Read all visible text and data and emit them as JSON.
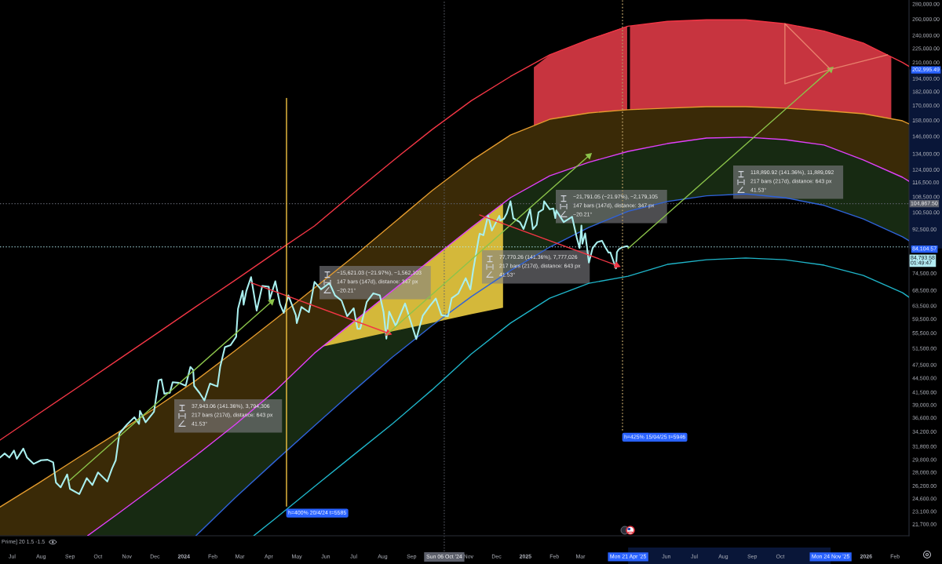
{
  "chart_data": {
    "type": "line",
    "log": true,
    "xlim": [
      "2023-06-18",
      "2026-02-16"
    ],
    "ylim": [
      20490,
      285450
    ],
    "xticks": [
      {
        "value": "2023-07-01",
        "label": "Jul"
      },
      {
        "value": "2023-08-01",
        "label": "Aug"
      },
      {
        "value": "2023-09-01",
        "label": "Sep"
      },
      {
        "value": "2023-10-01",
        "label": "Oct"
      },
      {
        "value": "2023-11-01",
        "label": "Nov"
      },
      {
        "value": "2023-12-01",
        "label": "Dec"
      },
      {
        "value": "2024-01-01",
        "label": "2024"
      },
      {
        "value": "2024-02-01",
        "label": "Feb"
      },
      {
        "value": "2024-03-01",
        "label": "Mar"
      },
      {
        "value": "2024-04-01",
        "label": "Apr"
      },
      {
        "value": "2024-05-01",
        "label": "May"
      },
      {
        "value": "2024-06-01",
        "label": "Jun"
      },
      {
        "value": "2024-07-01",
        "label": "Jul"
      },
      {
        "value": "2024-08-01",
        "label": "Aug"
      },
      {
        "value": "2024-09-01",
        "label": "Sep"
      },
      {
        "value": "2024-11-01",
        "label": "Nov"
      },
      {
        "value": "2024-12-01",
        "label": "Dec"
      },
      {
        "value": "2025-01-01",
        "label": "2025"
      },
      {
        "value": "2025-02-01",
        "label": "Feb"
      },
      {
        "value": "2025-03-01",
        "label": "Mar"
      },
      {
        "value": "2025-04-21",
        "label": "Mon 21 Apr '25"
      },
      {
        "value": "2025-06-01",
        "label": "Jun"
      },
      {
        "value": "2025-07-01",
        "label": "Jul"
      },
      {
        "value": "2025-08-01",
        "label": "Aug"
      },
      {
        "value": "2025-09-01",
        "label": "Sep"
      },
      {
        "value": "2025-10-01",
        "label": "Oct"
      },
      {
        "value": "2025-11-24",
        "label": "Mon 24 Nov '25"
      },
      {
        "value": "2026-01-01",
        "label": "2026"
      },
      {
        "value": "2026-02-01",
        "label": "Feb"
      }
    ],
    "yticks": [
      {
        "value": 280000,
        "label": "280,000.00"
      },
      {
        "value": 260000,
        "label": "260,000.00"
      },
      {
        "value": 240000,
        "label": "240,000.00"
      },
      {
        "value": 225000,
        "label": "225,000.00"
      },
      {
        "value": 210000,
        "label": "210,000.00"
      },
      {
        "value": 202995.49,
        "label": "202,995.49"
      },
      {
        "value": 194000,
        "label": "194,000.00"
      },
      {
        "value": 182000,
        "label": "182,000.00"
      },
      {
        "value": 170000,
        "label": "170,000.00"
      },
      {
        "value": 158000,
        "label": "158,000.00"
      },
      {
        "value": 146000,
        "label": "146,000.00"
      },
      {
        "value": 134000,
        "label": "134,000.00"
      },
      {
        "value": 124000,
        "label": "124,000.00"
      },
      {
        "value": 116500,
        "label": "116,500.00"
      },
      {
        "value": 108500,
        "label": "108,500.00"
      },
      {
        "value": 100500,
        "label": "100,500.00"
      },
      {
        "value": 92500,
        "label": "92,500.00"
      },
      {
        "value": 84104.57,
        "label": "84,104.57"
      },
      {
        "value": 74500,
        "label": "74,500.00"
      },
      {
        "value": 68500,
        "label": "68,500.00"
      },
      {
        "value": 63500,
        "label": "63,500.00"
      },
      {
        "value": 59500,
        "label": "59,500.00"
      },
      {
        "value": 55500,
        "label": "55,500.00"
      },
      {
        "value": 51500,
        "label": "51,500.00"
      },
      {
        "value": 47500,
        "label": "47,500.00"
      },
      {
        "value": 44500,
        "label": "44,500.00"
      },
      {
        "value": 41500,
        "label": "41,500.00"
      },
      {
        "value": 39000,
        "label": "39,000.00"
      },
      {
        "value": 36600,
        "label": "36,600.00"
      },
      {
        "value": 34200,
        "label": "34,200.00"
      },
      {
        "value": 31800,
        "label": "31,800.00"
      },
      {
        "value": 29800,
        "label": "29,800.00"
      },
      {
        "value": 28000,
        "label": "28,000.00"
      },
      {
        "value": 26200,
        "label": "26,200.00"
      },
      {
        "value": 24600,
        "label": "24,600.00"
      },
      {
        "value": 23100,
        "label": "23,100.00"
      },
      {
        "value": 21700,
        "label": "21,700.00"
      }
    ],
    "series": [
      {
        "color": "#3a2a07",
        "x": [
          "2023-06-18",
          "2023-07-30",
          "2023-09-10",
          "2023-09-20",
          "2023-10-22",
          "2023-12-03",
          "2024-01-14",
          "2024-02-25",
          "2024-04-08",
          "2024-05-20",
          "2024-07-01",
          "2024-08-12",
          "2024-09-23",
          "2024-11-04",
          "2024-12-16",
          "2025-01-27",
          "2025-03-10",
          "2025-04-21",
          "2025-06-02",
          "2025-07-14",
          "2025-08-25",
          "2025-10-06",
          "2025-11-17",
          "2025-12-29",
          "2026-02-09",
          "2026-02-16"
        ],
        "values": [
          null,
          null,
          null,
          null,
          null,
          null,
          null,
          null,
          null,
          null,
          null,
          null,
          null,
          null,
          null,
          null,
          null,
          null,
          null,
          null,
          null,
          null,
          null,
          null,
          null,
          null
        ],
        "upper": [
          23600,
          26600,
          30100,
          31100,
          34000,
          38600,
          44000,
          50900,
          59400,
          69300,
          80900,
          95100,
          111800,
          129500,
          147000,
          158800,
          163800,
          166400,
          167700,
          168900,
          168900,
          167700,
          165700,
          163200,
          157600,
          155200
        ],
        "lower": [
          20500,
          20500,
          20500,
          20500,
          22800,
          26300,
          30400,
          35400,
          41800,
          50300,
          58700,
          68500,
          80000,
          93300,
          108000,
          120300,
          128500,
          135600,
          140900,
          144800,
          145400,
          143700,
          139900,
          130000,
          119400,
          117100
        ]
      },
      {
        "color": "#172a12",
        "x": [
          "2023-09-20",
          "2023-10-22",
          "2023-12-03",
          "2024-01-14",
          "2024-02-25",
          "2024-04-08",
          "2024-05-20",
          "2024-07-01",
          "2024-08-12",
          "2024-09-23",
          "2024-11-04",
          "2024-12-16",
          "2025-01-27",
          "2025-03-10",
          "2025-04-21",
          "2025-06-02",
          "2025-07-14",
          "2025-08-25",
          "2025-10-06",
          "2025-11-17",
          "2025-12-29",
          "2026-02-09",
          "2026-02-16"
        ],
        "values": [
          null,
          null,
          null,
          null,
          null,
          null,
          null,
          null,
          null,
          null,
          null,
          null,
          null,
          null,
          null,
          null,
          null,
          null,
          null,
          null,
          null,
          null,
          null
        ],
        "upper": [
          20500,
          22800,
          26300,
          30400,
          35400,
          41800,
          50300,
          58700,
          68500,
          80000,
          93300,
          108000,
          120300,
          128500,
          135600,
          140900,
          144800,
          145400,
          143700,
          139900,
          130000,
          119400,
          117100
        ],
        "lower": [
          20500,
          20500,
          20500,
          20500,
          24700,
          29600,
          35200,
          41800,
          49400,
          57600,
          66400,
          75500,
          84700,
          93300,
          101000,
          106000,
          109000,
          110000,
          108000,
          104000,
          97300,
          89100,
          87400
        ]
      },
      {
        "color": "#c7343f",
        "x": [
          "2025-01-10",
          "2025-01-27",
          "2025-03-10",
          "2025-04-20"
        ],
        "values": [
          null,
          null,
          null,
          null
        ],
        "upper": [
          205000,
          218000,
          235000,
          251000
        ],
        "lower": [
          154000,
          158800,
          163800,
          166400
        ]
      },
      {
        "color": "#c7343f",
        "x": [
          "2025-04-23",
          "2025-06-02",
          "2025-07-14",
          "2025-08-25",
          "2025-10-06",
          "2025-11-17",
          "2025-12-29",
          "2026-01-28"
        ],
        "values": [
          null,
          null,
          null,
          null,
          null,
          null,
          null,
          null
        ],
        "upper": [
          251000,
          257000,
          259000,
          259000,
          254000,
          245000,
          231000,
          216000
        ],
        "lower": [
          166400,
          167700,
          168900,
          168900,
          167700,
          165700,
          163200,
          159500
        ]
      },
      {
        "color": "#d4b83a",
        "x": [
          "2024-05-28",
          "2024-07-01",
          "2024-08-12",
          "2024-09-23",
          "2024-11-04",
          "2024-12-08"
        ],
        "values": [
          null,
          null,
          null,
          null,
          null,
          null
        ],
        "upper": [
          51900,
          58700,
          68500,
          80000,
          93300,
          104900
        ],
        "lower": [
          51900,
          53700,
          56000,
          58400,
          60900,
          62900
        ]
      },
      {
        "color": "#f23645",
        "x": [
          "2023-06-18",
          "2023-07-30",
          "2023-09-10",
          "2023-10-22",
          "2023-12-03",
          "2024-01-14",
          "2024-02-25",
          "2024-04-08",
          "2024-05-20",
          "2024-07-01",
          "2024-08-12",
          "2024-09-23",
          "2024-11-04",
          "2024-12-16",
          "2025-01-27",
          "2025-03-10",
          "2025-04-21",
          "2025-06-02",
          "2025-07-14",
          "2025-08-25",
          "2025-10-06",
          "2025-11-17",
          "2025-12-29",
          "2026-02-09",
          "2026-02-16"
        ],
        "values": [
          32800,
          37400,
          42600,
          48600,
          55400,
          63200,
          72000,
          82500,
          94000,
          110500,
          129500,
          151000,
          174000,
          196000,
          218000,
          235000,
          251000,
          257000,
          259000,
          259000,
          254000,
          245000,
          231000,
          210000,
          206000
        ]
      },
      {
        "color": "#e39b2e",
        "x": [
          "2023-06-18",
          "2023-07-30",
          "2023-09-10",
          "2023-10-22",
          "2023-12-03",
          "2024-01-14",
          "2024-02-25",
          "2024-04-08",
          "2024-05-20",
          "2024-07-01",
          "2024-08-12",
          "2024-09-23",
          "2024-11-04",
          "2024-12-16",
          "2025-01-27",
          "2025-03-10",
          "2025-04-21",
          "2025-06-02",
          "2025-07-14",
          "2025-08-25",
          "2025-10-06",
          "2025-11-17",
          "2025-12-29",
          "2026-02-09",
          "2026-02-16"
        ],
        "values": [
          23600,
          26600,
          30100,
          34000,
          38600,
          44000,
          50900,
          59400,
          69300,
          80900,
          95100,
          111800,
          129500,
          147000,
          158800,
          163800,
          166400,
          167700,
          168900,
          168900,
          167700,
          165700,
          163200,
          157600,
          155200
        ]
      },
      {
        "color": "#e040fb",
        "x": [
          "2023-09-20",
          "2023-10-22",
          "2023-12-03",
          "2024-01-14",
          "2024-02-25",
          "2024-04-08",
          "2024-05-20",
          "2024-07-01",
          "2024-08-12",
          "2024-09-23",
          "2024-11-04",
          "2024-12-16",
          "2025-01-27",
          "2025-03-10",
          "2025-04-21",
          "2025-06-02",
          "2025-07-14",
          "2025-08-25",
          "2025-10-06",
          "2025-11-17",
          "2025-12-29",
          "2026-02-09",
          "2026-02-16"
        ],
        "values": [
          20500,
          22800,
          26300,
          30400,
          35400,
          41800,
          50300,
          58700,
          68500,
          80000,
          93300,
          108000,
          120300,
          128500,
          135600,
          140900,
          144800,
          145400,
          143700,
          139900,
          130000,
          119400,
          117100
        ]
      },
      {
        "color": "#2f62d8",
        "x": [
          "2024-01-14",
          "2024-02-25",
          "2024-04-08",
          "2024-05-20",
          "2024-07-01",
          "2024-08-12",
          "2024-09-23",
          "2024-11-04",
          "2024-12-16",
          "2025-01-27",
          "2025-03-10",
          "2025-04-21",
          "2025-06-02",
          "2025-07-14",
          "2025-08-25",
          "2025-10-06",
          "2025-11-17",
          "2025-12-29",
          "2026-02-09",
          "2026-02-16"
        ],
        "values": [
          20500,
          24700,
          29600,
          35200,
          41800,
          49400,
          57600,
          66400,
          75500,
          84700,
          93300,
          101000,
          106000,
          109000,
          110000,
          108000,
          104000,
          97300,
          89100,
          87400
        ]
      },
      {
        "color": "#1fb5c9",
        "x": [
          "2024-03-16",
          "2024-04-08",
          "2024-05-20",
          "2024-07-01",
          "2024-08-12",
          "2024-09-23",
          "2024-11-04",
          "2024-12-16",
          "2025-01-27",
          "2025-03-10",
          "2025-04-21",
          "2025-06-02",
          "2025-07-14",
          "2025-08-25",
          "2025-10-06",
          "2025-11-17",
          "2025-12-29",
          "2026-02-09",
          "2026-02-16"
        ],
        "values": [
          20500,
          22300,
          26100,
          30500,
          35600,
          42000,
          50100,
          58300,
          65900,
          70900,
          73400,
          77800,
          79600,
          80300,
          79600,
          77500,
          73700,
          67700,
          66200
        ]
      },
      {
        "color": "#a9efee",
        "x": [
          "2023-06-18",
          "2023-06-23",
          "2023-06-28",
          "2023-07-03",
          "2023-07-06",
          "2023-07-13",
          "2023-07-17",
          "2023-07-24",
          "2023-08-01",
          "2023-08-08",
          "2023-08-14",
          "2023-08-17",
          "2023-08-22",
          "2023-08-29",
          "2023-09-01",
          "2023-09-11",
          "2023-09-19",
          "2023-09-25",
          "2023-10-01",
          "2023-10-11",
          "2023-10-16",
          "2023-10-20",
          "2023-10-24",
          "2023-11-01",
          "2023-11-09",
          "2023-11-14",
          "2023-11-15",
          "2023-11-21",
          "2023-11-30",
          "2023-12-05",
          "2023-12-08",
          "2023-12-11",
          "2023-12-17",
          "2023-12-20",
          "2023-12-27",
          "2024-01-03",
          "2024-01-08",
          "2024-01-11",
          "2024-01-12",
          "2024-01-18",
          "2024-01-23",
          "2024-01-29",
          "2024-02-06",
          "2024-02-09",
          "2024-02-14",
          "2024-02-20",
          "2024-02-26",
          "2024-02-28",
          "2024-03-04",
          "2024-03-05",
          "2024-03-08",
          "2024-03-13",
          "2024-03-19",
          "2024-03-25",
          "2024-04-01",
          "2024-04-02",
          "2024-04-08",
          "2024-04-13",
          "2024-04-17",
          "2024-04-22",
          "2024-04-30",
          "2024-05-01",
          "2024-05-06",
          "2024-05-14",
          "2024-05-20",
          "2024-05-27",
          "2024-06-05",
          "2024-06-11",
          "2024-06-18",
          "2024-06-24",
          "2024-07-01",
          "2024-07-05",
          "2024-07-08",
          "2024-07-15",
          "2024-07-22",
          "2024-07-29",
          "2024-08-02",
          "2024-08-05",
          "2024-08-08",
          "2024-08-15",
          "2024-08-25",
          "2024-09-06",
          "2024-09-13",
          "2024-09-20",
          "2024-09-27",
          "2024-10-03",
          "2024-10-10",
          "2024-10-14",
          "2024-10-21",
          "2024-10-29",
          "2024-11-03",
          "2024-11-06",
          "2024-11-12",
          "2024-11-13",
          "2024-11-17",
          "2024-11-22",
          "2024-11-26",
          "2024-12-04",
          "2024-12-05",
          "2024-12-09",
          "2024-12-12",
          "2024-12-16",
          "2024-12-19",
          "2024-12-26",
          "2024-12-30",
          "2025-01-06",
          "2025-01-09",
          "2025-01-13",
          "2025-01-15",
          "2025-01-20",
          "2025-01-21",
          "2025-01-27",
          "2025-01-31",
          "2025-02-02",
          "2025-02-03",
          "2025-02-11",
          "2025-02-20",
          "2025-02-25",
          "2025-02-28",
          "2025-03-02",
          "2025-03-03",
          "2025-03-06",
          "2025-03-10",
          "2025-03-14",
          "2025-03-19",
          "2025-03-24",
          "2025-03-28",
          "2025-03-31",
          "2025-04-02",
          "2025-04-06",
          "2025-04-08",
          "2025-04-09",
          "2025-04-11",
          "2025-04-14",
          "2025-04-17",
          "2025-04-20",
          "2025-04-21"
        ],
        "values": [
          30100,
          30700,
          30100,
          31150,
          29900,
          31450,
          30100,
          29180,
          29700,
          29770,
          29400,
          26600,
          26000,
          27700,
          25800,
          25150,
          27200,
          26300,
          27980,
          26750,
          28500,
          29700,
          33900,
          35400,
          36700,
          35500,
          37850,
          35800,
          37700,
          44000,
          44200,
          41200,
          41400,
          43600,
          43450,
          42850,
          47000,
          46300,
          42800,
          41300,
          39850,
          43300,
          42700,
          47100,
          51800,
          52300,
          54500,
          62500,
          68300,
          63800,
          68300,
          73100,
          62000,
          70000,
          69700,
          65500,
          71600,
          64000,
          61300,
          66800,
          60600,
          58300,
          63100,
          61500,
          71400,
          68800,
          71000,
          66800,
          65100,
          60300,
          62700,
          56700,
          56700,
          64700,
          67500,
          66800,
          61500,
          54000,
          61700,
          57500,
          64200,
          53900,
          60500,
          63200,
          65800,
          60600,
          60300,
          65900,
          67400,
          72700,
          68800,
          75600,
          88700,
          90500,
          89800,
          98900,
          91900,
          98800,
          96600,
          97400,
          100000,
          106100,
          97600,
          95800,
          92600,
          102000,
          92500,
          94500,
          100500,
          102000,
          106100,
          102000,
          102400,
          97700,
          101400,
          95800,
          98300,
          88700,
          84300,
          94200,
          86100,
          90600,
          78500,
          84300,
          86800,
          87400,
          84400,
          82500,
          82500,
          78300,
          76300,
          82600,
          83800,
          84500,
          84900,
          85100,
          84793.58
        ]
      },
      {
        "color": "#8bc34a",
        "x": [
          "2023-08-31",
          "2024-04-04"
        ],
        "values": [
          26841.44,
          64784.5
        ]
      },
      {
        "color": "#f23645",
        "x": [
          "2024-03-13",
          "2024-08-07"
        ],
        "values": [
          71101.6,
          55480.57
        ]
      },
      {
        "color": "#8bc34a",
        "x": [
          "2024-08-05",
          "2025-03-10"
        ],
        "values": [
          55015.75,
          132786.01
        ]
      },
      {
        "color": "#f23645",
        "x": [
          "2024-11-13",
          "2025-04-09"
        ],
        "values": [
          99185.48,
          77394.43
        ]
      },
      {
        "color": "#8bc34a",
        "x": [
          "2025-04-21",
          "2025-11-24"
        ],
        "values": [
          84104.57,
          202995.49
        ]
      },
      {
        "color": "#e8806c",
        "x": [
          "2025-11-24",
          "2025-10-06",
          "2025-10-06",
          "2025-11-24",
          "2026-01-24"
        ],
        "values": [
          202995.49,
          189000,
          254000,
          202995.49,
          218000
        ]
      },
      {
        "color": "#f5c542",
        "x": [
          "2024-04-20",
          "2024-04-20"
        ],
        "values": [
          176000,
          23700
        ]
      },
      {
        "color": "#b59a62",
        "line_style": "dotted",
        "x": [
          "2025-04-15",
          "2025-04-15"
        ],
        "values": [
          285000,
          34400
        ]
      }
    ],
    "ref_lines": [
      {
        "axis": "x",
        "value": "2024-10-06",
        "label": "Sun 06 Oct '24",
        "line_style": "dotted",
        "color": "#5d606b"
      },
      {
        "axis": "y",
        "value": 104867.5,
        "label": "104,867.50",
        "line_style": "dotted",
        "color": "#5d606b"
      },
      {
        "axis": "y",
        "value": 84793.58,
        "label": "84,793.58\n01:49:47",
        "line_style": "dotted",
        "color": "#b2ebf2"
      }
    ],
    "annotations": [
      "37,943.06 (141.36%), 3,794,306\n217 bars (217d), distance: 643 px\n41.53°",
      "−15,621.03 (−21.97%), −1,562,103\n147 bars (147d), distance: 347 px\n−20.21°",
      "77,770.26 (141.36%), 7,777,026\n217 bars (217d), distance: 643 px\n41.53°",
      "−21,791.05 (−21.97%), −2,179,105\n147 bars (147d), distance: 347 px\n−20.21°",
      "118,890.92 (141.36%), 11,889,092\n217 bars (217d), distance: 643 px\n41.53°",
      "Prime] 20 1.5 -1.5",
      {
        "text": "h=400% 20/4/24 t=5585",
        "x": "2024-04-20",
        "y": 23700
      },
      {
        "text": "h=425% 15/04/25 t=5946",
        "x": "2025-04-15",
        "y": 34400
      }
    ]
  }
}
